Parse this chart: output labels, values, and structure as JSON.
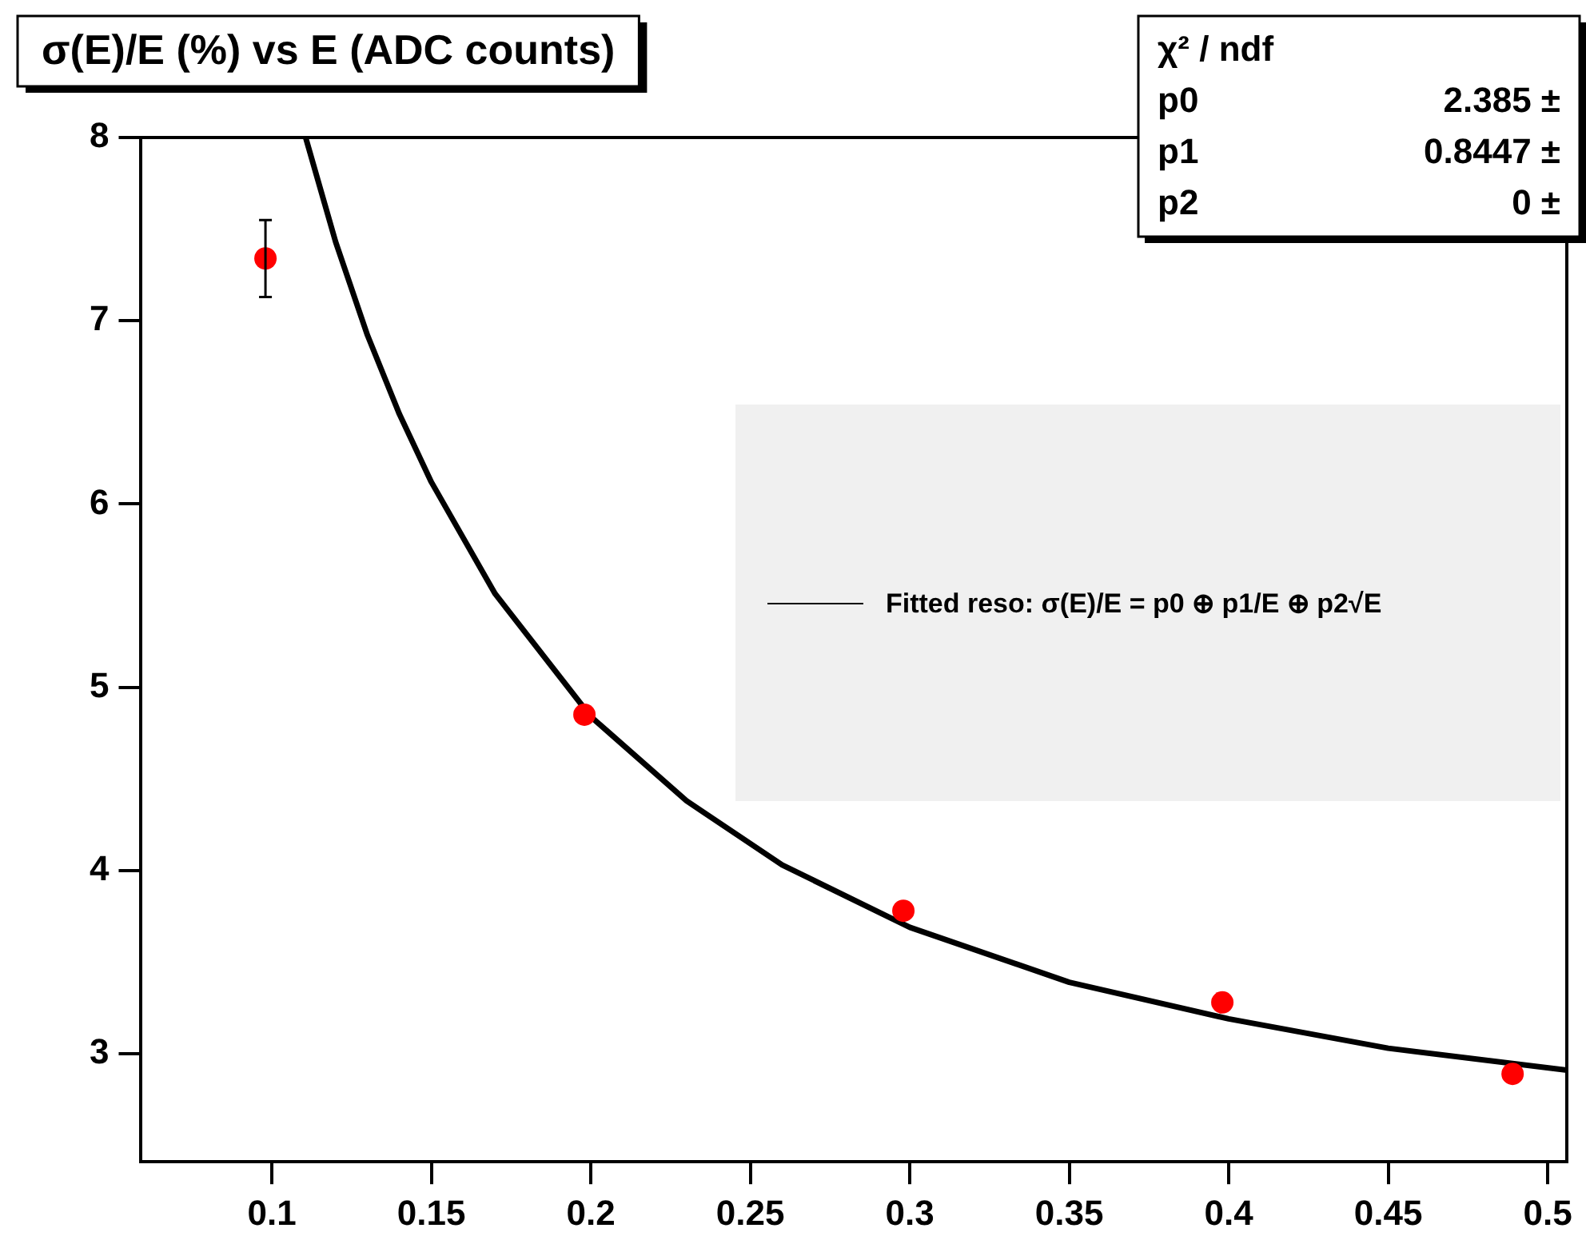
{
  "chart_data": {
    "type": "scatter",
    "title": "σ(E)/E (%) vs E (ADC counts)",
    "series": [
      {
        "type": "scatter",
        "marker": "circle",
        "color": "#ff0000",
        "x": [
          0.098,
          0.198,
          0.298,
          0.398,
          0.489
        ],
        "values": [
          7.34,
          4.85,
          3.78,
          3.28,
          2.89
        ],
        "errors": [
          0.21,
          null,
          null,
          null,
          null
        ]
      },
      {
        "type": "line",
        "marker": "none",
        "name": "Fitted reso: σ(E)/E = p0 ⊕ p1/E ⊕ p2√E",
        "color": "#000000",
        "x": [
          0.1106,
          0.12,
          0.13,
          0.14,
          0.15,
          0.17,
          0.2,
          0.23,
          0.26,
          0.3,
          0.35,
          0.4,
          0.45,
          0.506
        ],
        "values": [
          8.0,
          7.43,
          6.92,
          6.49,
          6.12,
          5.51,
          4.84,
          4.38,
          4.03,
          3.69,
          3.39,
          3.19,
          3.03,
          2.91
        ]
      }
    ],
    "xlim": [
      0.059,
      0.506
    ],
    "xticks": [
      0.1,
      0.15,
      0.2,
      0.25,
      0.3,
      0.35,
      0.4,
      0.45,
      0.5
    ],
    "ylim": [
      2.41,
      8
    ],
    "yticks": [
      3,
      4,
      5,
      6,
      7,
      8
    ],
    "grid": false,
    "legend": "right",
    "annotations": [
      "χ² / ndf",
      "p0",
      "2.385 ±",
      "p1",
      "0.8447 ±",
      "p2",
      "0 ±"
    ]
  }
}
